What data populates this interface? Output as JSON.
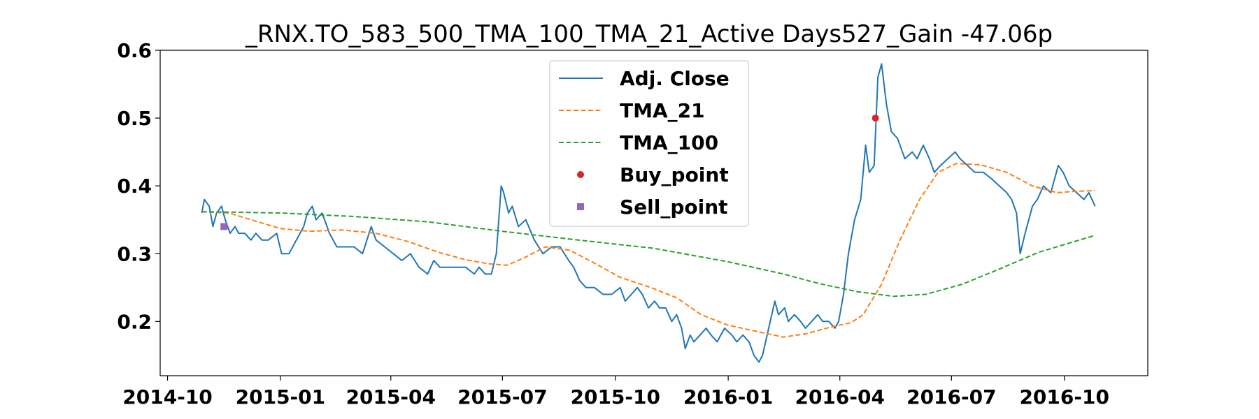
{
  "chart_data": {
    "type": "line",
    "title": "_RNX.TO_583_500_TMA_100_TMA_21_Active Days527_Gain -47.06p",
    "xlabel": "",
    "ylabel": "",
    "x_ticks": [
      "2014-10",
      "2015-01",
      "2015-04",
      "2015-07",
      "2015-10",
      "2016-01",
      "2016-04",
      "2016-07",
      "2016-10"
    ],
    "y_ticks": [
      "0.2",
      "0.3",
      "0.4",
      "0.5",
      "0.6"
    ],
    "xlim": [
      "2014-09-25",
      "2016-12-08"
    ],
    "ylim": [
      0.12,
      0.6
    ],
    "grid": false,
    "legend_position": "top-center",
    "series": [
      {
        "name": "Adj. Close",
        "kind": "line",
        "color": "#1f77b4",
        "points": [
          [
            "2014-10-29",
            0.36
          ],
          [
            "2014-10-31",
            0.38
          ],
          [
            "2014-11-04",
            0.37
          ],
          [
            "2014-11-07",
            0.34
          ],
          [
            "2014-11-10",
            0.36
          ],
          [
            "2014-11-14",
            0.37
          ],
          [
            "2014-11-17",
            0.35
          ],
          [
            "2014-11-21",
            0.33
          ],
          [
            "2014-11-25",
            0.34
          ],
          [
            "2014-11-28",
            0.33
          ],
          [
            "2014-12-03",
            0.33
          ],
          [
            "2014-12-08",
            0.32
          ],
          [
            "2014-12-12",
            0.33
          ],
          [
            "2014-12-17",
            0.32
          ],
          [
            "2014-12-22",
            0.32
          ],
          [
            "2014-12-29",
            0.33
          ],
          [
            "2015-01-02",
            0.3
          ],
          [
            "2015-01-08",
            0.3
          ],
          [
            "2015-01-14",
            0.32
          ],
          [
            "2015-01-20",
            0.34
          ],
          [
            "2015-01-23",
            0.36
          ],
          [
            "2015-01-27",
            0.37
          ],
          [
            "2015-01-30",
            0.35
          ],
          [
            "2015-02-04",
            0.36
          ],
          [
            "2015-02-10",
            0.33
          ],
          [
            "2015-02-16",
            0.31
          ],
          [
            "2015-02-23",
            0.31
          ],
          [
            "2015-03-02",
            0.31
          ],
          [
            "2015-03-09",
            0.3
          ],
          [
            "2015-03-16",
            0.34
          ],
          [
            "2015-03-20",
            0.32
          ],
          [
            "2015-03-27",
            0.31
          ],
          [
            "2015-04-03",
            0.3
          ],
          [
            "2015-04-10",
            0.29
          ],
          [
            "2015-04-17",
            0.3
          ],
          [
            "2015-04-24",
            0.28
          ],
          [
            "2015-05-01",
            0.27
          ],
          [
            "2015-05-06",
            0.29
          ],
          [
            "2015-05-11",
            0.28
          ],
          [
            "2015-05-18",
            0.28
          ],
          [
            "2015-05-25",
            0.28
          ],
          [
            "2015-06-01",
            0.28
          ],
          [
            "2015-06-08",
            0.27
          ],
          [
            "2015-06-12",
            0.28
          ],
          [
            "2015-06-17",
            0.27
          ],
          [
            "2015-06-22",
            0.27
          ],
          [
            "2015-06-26",
            0.3
          ],
          [
            "2015-06-30",
            0.4
          ],
          [
            "2015-07-02",
            0.39
          ],
          [
            "2015-07-06",
            0.36
          ],
          [
            "2015-07-09",
            0.37
          ],
          [
            "2015-07-14",
            0.34
          ],
          [
            "2015-07-20",
            0.35
          ],
          [
            "2015-07-27",
            0.32
          ],
          [
            "2015-08-03",
            0.3
          ],
          [
            "2015-08-10",
            0.31
          ],
          [
            "2015-08-17",
            0.31
          ],
          [
            "2015-08-24",
            0.29
          ],
          [
            "2015-08-28",
            0.28
          ],
          [
            "2015-09-02",
            0.26
          ],
          [
            "2015-09-07",
            0.25
          ],
          [
            "2015-09-14",
            0.25
          ],
          [
            "2015-09-21",
            0.24
          ],
          [
            "2015-09-28",
            0.24
          ],
          [
            "2015-10-05",
            0.25
          ],
          [
            "2015-10-09",
            0.23
          ],
          [
            "2015-10-14",
            0.24
          ],
          [
            "2015-10-19",
            0.25
          ],
          [
            "2015-10-23",
            0.24
          ],
          [
            "2015-10-28",
            0.22
          ],
          [
            "2015-11-02",
            0.23
          ],
          [
            "2015-11-06",
            0.22
          ],
          [
            "2015-11-11",
            0.22
          ],
          [
            "2015-11-16",
            0.2
          ],
          [
            "2015-11-20",
            0.21
          ],
          [
            "2015-11-24",
            0.19
          ],
          [
            "2015-11-27",
            0.16
          ],
          [
            "2015-12-01",
            0.18
          ],
          [
            "2015-12-04",
            0.17
          ],
          [
            "2015-12-09",
            0.18
          ],
          [
            "2015-12-14",
            0.19
          ],
          [
            "2015-12-18",
            0.18
          ],
          [
            "2015-12-23",
            0.17
          ],
          [
            "2015-12-29",
            0.19
          ],
          [
            "2016-01-04",
            0.18
          ],
          [
            "2016-01-08",
            0.17
          ],
          [
            "2016-01-13",
            0.18
          ],
          [
            "2016-01-18",
            0.17
          ],
          [
            "2016-01-22",
            0.15
          ],
          [
            "2016-01-26",
            0.14
          ],
          [
            "2016-01-29",
            0.15
          ],
          [
            "2016-02-03",
            0.19
          ],
          [
            "2016-02-08",
            0.23
          ],
          [
            "2016-02-11",
            0.21
          ],
          [
            "2016-02-16",
            0.22
          ],
          [
            "2016-02-19",
            0.2
          ],
          [
            "2016-02-24",
            0.21
          ],
          [
            "2016-02-29",
            0.2
          ],
          [
            "2016-03-04",
            0.19
          ],
          [
            "2016-03-09",
            0.2
          ],
          [
            "2016-03-14",
            0.21
          ],
          [
            "2016-03-18",
            0.2
          ],
          [
            "2016-03-23",
            0.2
          ],
          [
            "2016-03-28",
            0.19
          ],
          [
            "2016-03-31",
            0.2
          ],
          [
            "2016-04-04",
            0.24
          ],
          [
            "2016-04-08",
            0.3
          ],
          [
            "2016-04-13",
            0.35
          ],
          [
            "2016-04-18",
            0.38
          ],
          [
            "2016-04-22",
            0.46
          ],
          [
            "2016-04-25",
            0.42
          ],
          [
            "2016-04-29",
            0.43
          ],
          [
            "2016-05-02",
            0.56
          ],
          [
            "2016-05-05",
            0.58
          ],
          [
            "2016-05-09",
            0.52
          ],
          [
            "2016-05-13",
            0.48
          ],
          [
            "2016-05-18",
            0.47
          ],
          [
            "2016-05-24",
            0.44
          ],
          [
            "2016-05-30",
            0.45
          ],
          [
            "2016-06-03",
            0.44
          ],
          [
            "2016-06-08",
            0.46
          ],
          [
            "2016-06-13",
            0.44
          ],
          [
            "2016-06-17",
            0.42
          ],
          [
            "2016-06-22",
            0.43
          ],
          [
            "2016-06-28",
            0.44
          ],
          [
            "2016-07-04",
            0.45
          ],
          [
            "2016-07-08",
            0.44
          ],
          [
            "2016-07-14",
            0.43
          ],
          [
            "2016-07-20",
            0.42
          ],
          [
            "2016-07-27",
            0.42
          ],
          [
            "2016-08-03",
            0.41
          ],
          [
            "2016-08-09",
            0.4
          ],
          [
            "2016-08-15",
            0.39
          ],
          [
            "2016-08-19",
            0.38
          ],
          [
            "2016-08-23",
            0.36
          ],
          [
            "2016-08-26",
            0.3
          ],
          [
            "2016-08-30",
            0.33
          ],
          [
            "2016-09-05",
            0.37
          ],
          [
            "2016-09-09",
            0.38
          ],
          [
            "2016-09-14",
            0.4
          ],
          [
            "2016-09-20",
            0.39
          ],
          [
            "2016-09-26",
            0.43
          ],
          [
            "2016-09-30",
            0.42
          ],
          [
            "2016-10-05",
            0.4
          ],
          [
            "2016-10-11",
            0.39
          ],
          [
            "2016-10-17",
            0.38
          ],
          [
            "2016-10-21",
            0.39
          ],
          [
            "2016-10-26",
            0.37
          ]
        ]
      },
      {
        "name": "TMA_21",
        "kind": "dashed",
        "color": "#ff7f0e",
        "points": [
          [
            "2014-10-29",
            0.362
          ],
          [
            "2014-11-20",
            0.36
          ],
          [
            "2014-12-10",
            0.349
          ],
          [
            "2015-01-01",
            0.337
          ],
          [
            "2015-01-25",
            0.333
          ],
          [
            "2015-02-20",
            0.335
          ],
          [
            "2015-03-20",
            0.33
          ],
          [
            "2015-04-15",
            0.318
          ],
          [
            "2015-05-10",
            0.302
          ],
          [
            "2015-06-01",
            0.291
          ],
          [
            "2015-06-20",
            0.285
          ],
          [
            "2015-07-05",
            0.283
          ],
          [
            "2015-07-20",
            0.295
          ],
          [
            "2015-08-05",
            0.31
          ],
          [
            "2015-08-25",
            0.305
          ],
          [
            "2015-09-15",
            0.285
          ],
          [
            "2015-10-05",
            0.265
          ],
          [
            "2015-10-30",
            0.25
          ],
          [
            "2015-11-20",
            0.235
          ],
          [
            "2015-12-10",
            0.21
          ],
          [
            "2015-12-31",
            0.195
          ],
          [
            "2016-01-25",
            0.185
          ],
          [
            "2016-02-15",
            0.177
          ],
          [
            "2016-03-05",
            0.182
          ],
          [
            "2016-03-25",
            0.192
          ],
          [
            "2016-04-10",
            0.198
          ],
          [
            "2016-04-20",
            0.21
          ],
          [
            "2016-05-05",
            0.255
          ],
          [
            "2016-05-20",
            0.32
          ],
          [
            "2016-06-05",
            0.38
          ],
          [
            "2016-06-20",
            0.42
          ],
          [
            "2016-07-05",
            0.433
          ],
          [
            "2016-07-25",
            0.431
          ],
          [
            "2016-08-15",
            0.42
          ],
          [
            "2016-09-05",
            0.4
          ],
          [
            "2016-09-25",
            0.39
          ],
          [
            "2016-10-10",
            0.392
          ],
          [
            "2016-10-26",
            0.393
          ]
        ]
      },
      {
        "name": "TMA_100",
        "kind": "dashed",
        "color": "#2ca02c",
        "points": [
          [
            "2014-10-29",
            0.362
          ],
          [
            "2015-01-01",
            0.36
          ],
          [
            "2015-03-01",
            0.355
          ],
          [
            "2015-05-01",
            0.347
          ],
          [
            "2015-07-01",
            0.333
          ],
          [
            "2015-09-01",
            0.32
          ],
          [
            "2015-11-01",
            0.308
          ],
          [
            "2016-01-01",
            0.288
          ],
          [
            "2016-02-15",
            0.27
          ],
          [
            "2016-03-15",
            0.256
          ],
          [
            "2016-04-15",
            0.244
          ],
          [
            "2016-05-15",
            0.237
          ],
          [
            "2016-06-10",
            0.24
          ],
          [
            "2016-07-10",
            0.255
          ],
          [
            "2016-08-10",
            0.278
          ],
          [
            "2016-09-10",
            0.302
          ],
          [
            "2016-10-26",
            0.327
          ]
        ]
      },
      {
        "name": "Buy_point",
        "kind": "marker-circle",
        "color": "#d62728",
        "points": [
          [
            "2016-04-30",
            0.5
          ]
        ]
      },
      {
        "name": "Sell_point",
        "kind": "marker-square",
        "color": "#9467bd",
        "points": [
          [
            "2014-11-16",
            0.34
          ]
        ]
      }
    ]
  }
}
